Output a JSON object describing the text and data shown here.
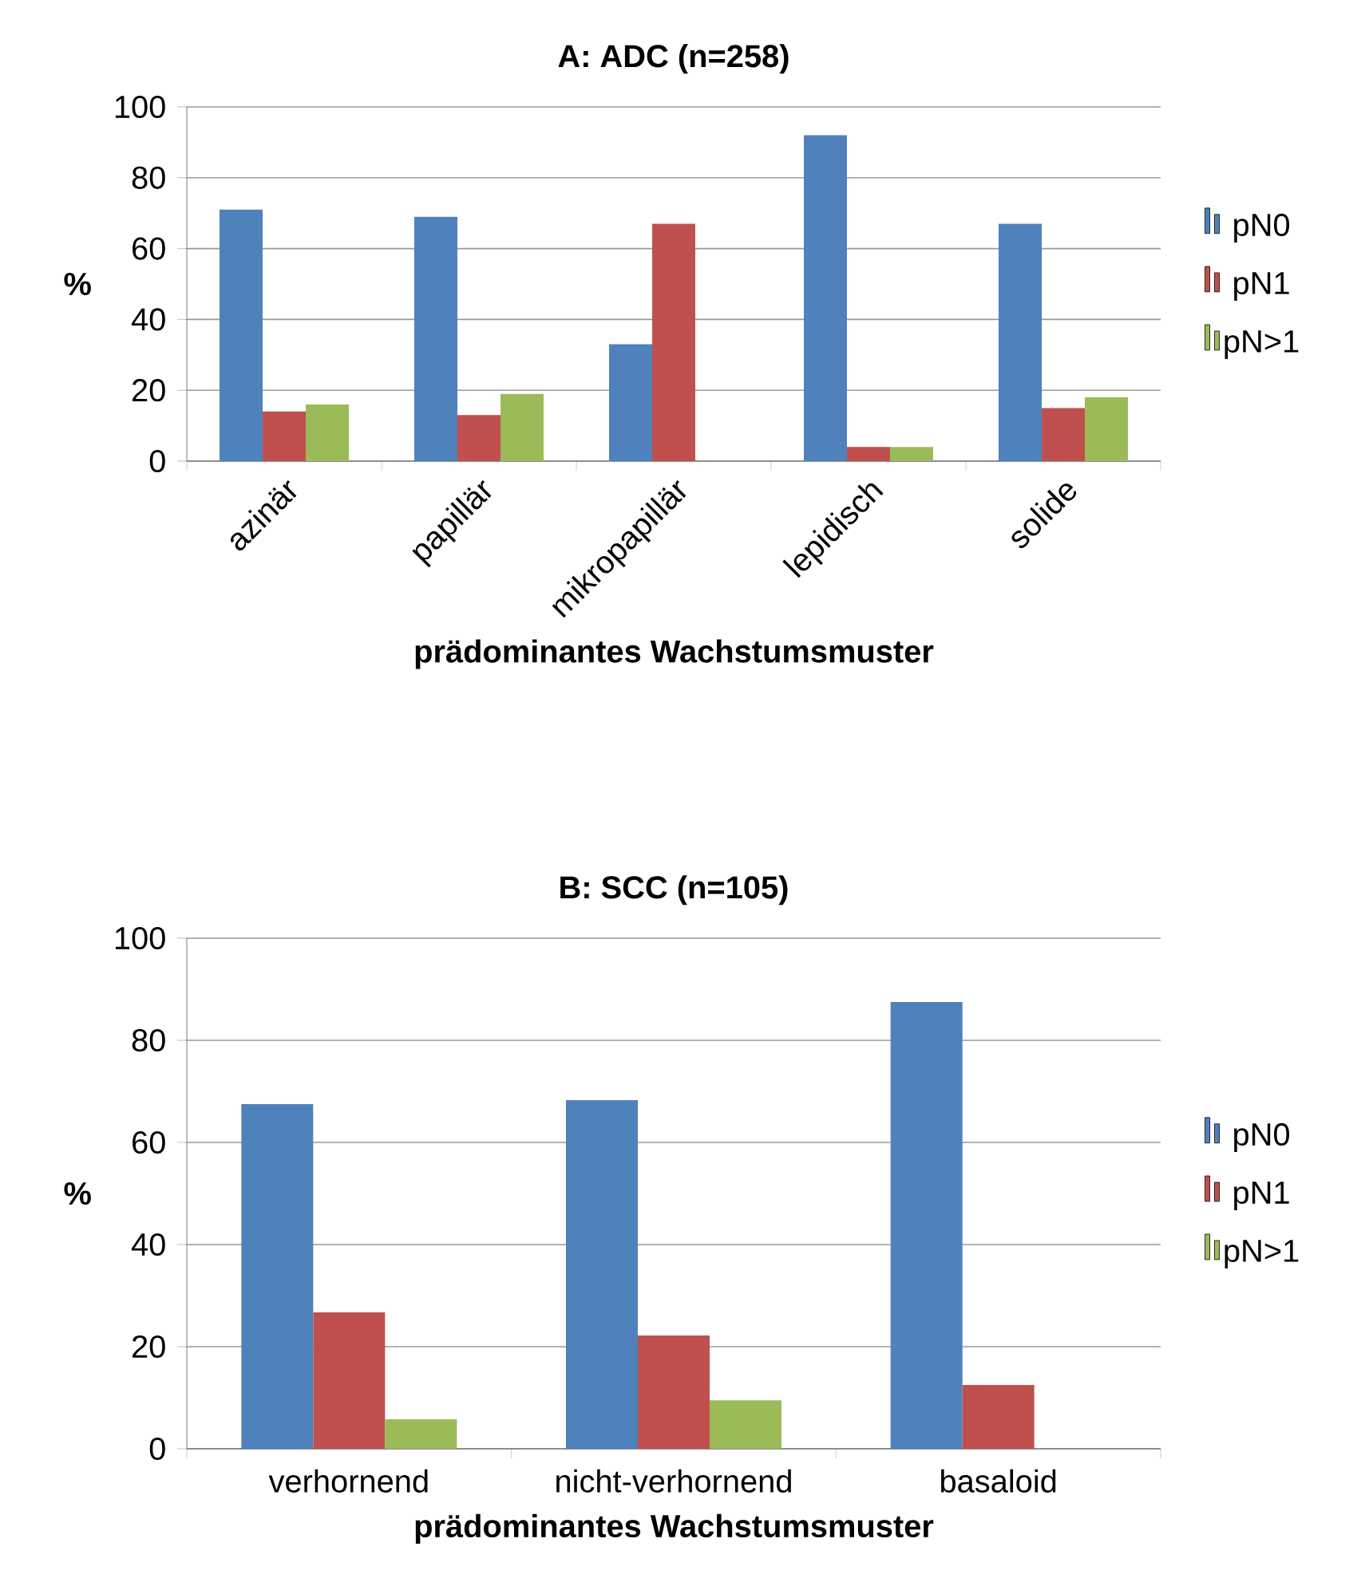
{
  "chart_data": [
    {
      "type": "bar",
      "title": "**A: ADC (n=258)**",
      "xlabel": "**prädominantes Wachstumsmuster**",
      "ylabel": "**%**",
      "categories": [
        "azinär",
        "papillär",
        "mikropapillär",
        "lepidisch",
        "solide"
      ],
      "series": [
        {
          "name": "pN0",
          "color": "#4f81bd",
          "values": [
            71,
            69,
            33,
            92,
            67
          ]
        },
        {
          "name": "pN1",
          "color": "#c0504d",
          "values": [
            14,
            13,
            67,
            4,
            15
          ]
        },
        {
          "name": "pN>1",
          "color": "#9bbb59",
          "values": [
            16,
            19,
            0,
            4,
            18
          ]
        }
      ],
      "ylim": [
        0,
        100
      ],
      "yticks": [
        0,
        20,
        40,
        60,
        80,
        100
      ],
      "grid": "y",
      "legend": "right"
    },
    {
      "type": "bar",
      "title": "**B: SCC (n=105)**",
      "xlabel": "**prädominantes Wachstumsmuster**",
      "ylabel": "**%**",
      "categories": [
        "verhornend",
        "nicht-verhornend",
        "basaloid"
      ],
      "series": [
        {
          "name": "pN0",
          "color": "#4f81bd",
          "values": [
            67.5,
            68.3,
            87.5
          ]
        },
        {
          "name": "pN1",
          "color": "#c0504d",
          "values": [
            26.7,
            22.2,
            12.5
          ]
        },
        {
          "name": "pN>1",
          "color": "#9bbb59",
          "values": [
            5.8,
            9.5,
            0
          ]
        }
      ],
      "ylim": [
        0,
        100
      ],
      "yticks": [
        0,
        20,
        40,
        60,
        80,
        100
      ],
      "grid": "y",
      "legend": "right"
    }
  ]
}
